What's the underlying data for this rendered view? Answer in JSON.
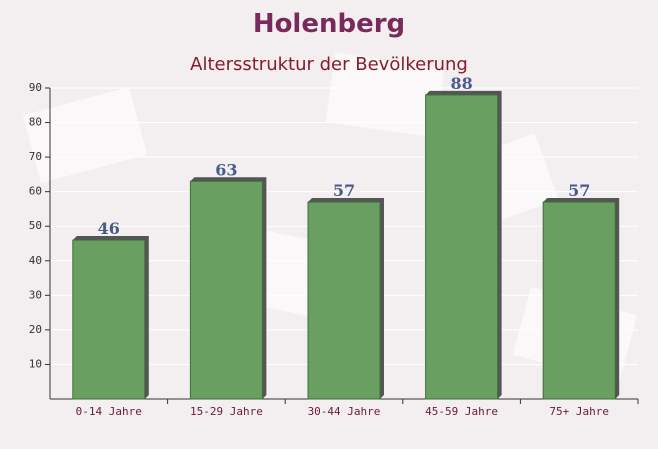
{
  "chart_data": {
    "type": "bar",
    "title": "Holenberg",
    "subtitle": "Altersstruktur der Bevölkerung",
    "categories": [
      "0-14 Jahre",
      "15-29 Jahre",
      "30-44 Jahre",
      "45-59 Jahre",
      "75+ Jahre"
    ],
    "values": [
      46,
      63,
      57,
      88,
      57
    ],
    "color": "#6a9f62",
    "ylim": [
      0,
      90
    ],
    "yticks": [
      10,
      20,
      30,
      40,
      50,
      60,
      70,
      80,
      90
    ],
    "grid": true
  }
}
